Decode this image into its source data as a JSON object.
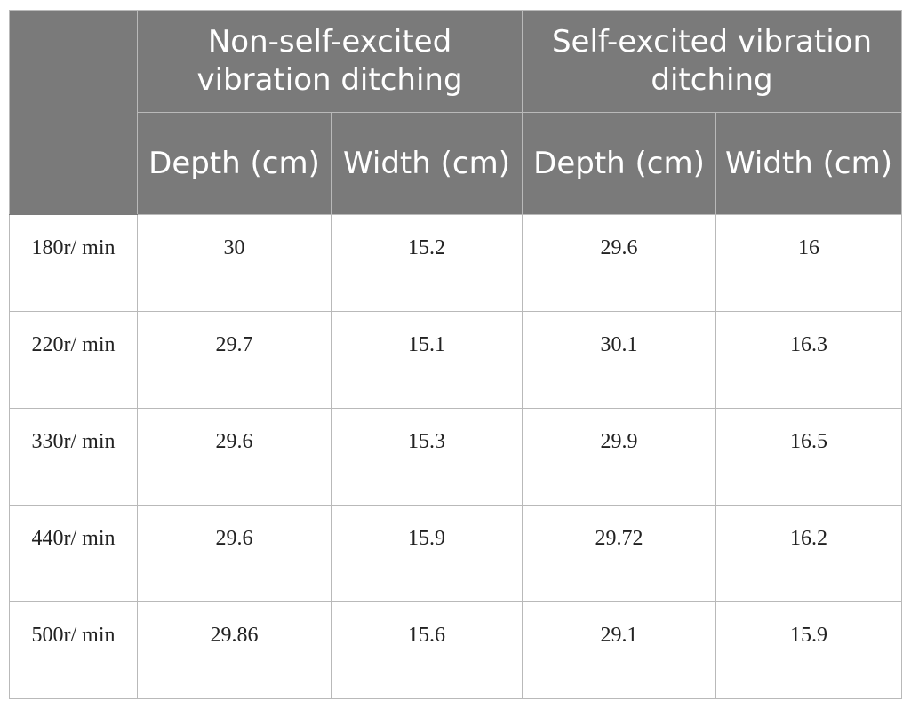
{
  "header": {
    "group_non_self": "Non-self-excited vibration ditching",
    "group_self": "Self-excited vibration ditching",
    "subcolumns": [
      "Depth (cm)",
      "Width (cm)",
      "Depth (cm)",
      "Width (cm)"
    ]
  },
  "rows": [
    {
      "speed": "180r/ min",
      "values": [
        "30",
        "15.2",
        "29.6",
        "16"
      ]
    },
    {
      "speed": "220r/ min",
      "values": [
        "29.7",
        "15.1",
        "30.1",
        "16.3"
      ]
    },
    {
      "speed": "330r/ min",
      "values": [
        "29.6",
        "15.3",
        "29.9",
        "16.5"
      ]
    },
    {
      "speed": "440r/ min",
      "values": [
        "29.6",
        "15.9",
        "29.72",
        "16.2"
      ]
    },
    {
      "speed": "500r/ min",
      "values": [
        "29.86",
        "15.6",
        "29.1",
        "15.9"
      ]
    }
  ]
}
